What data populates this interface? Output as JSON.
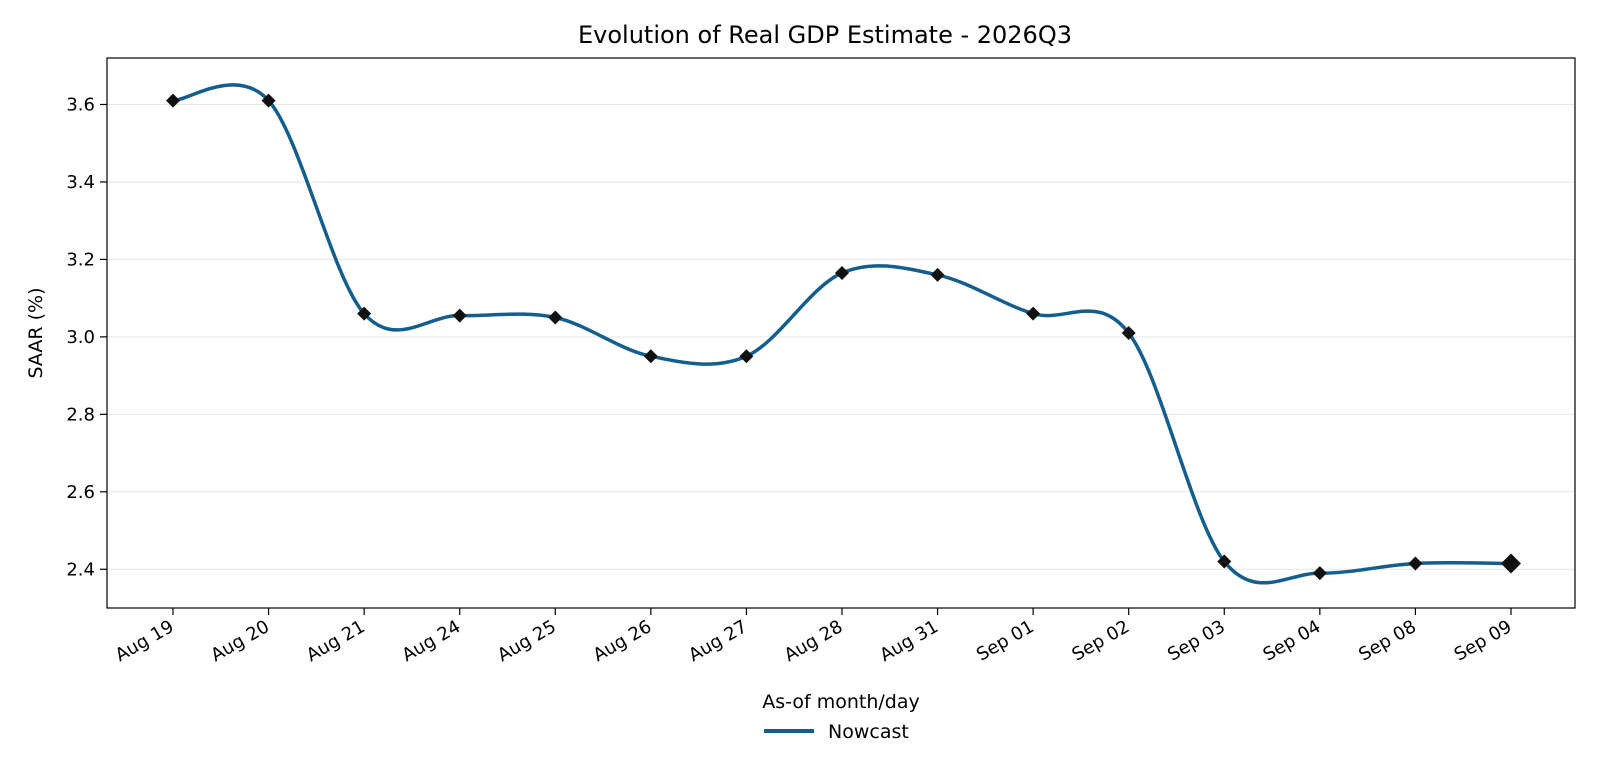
{
  "chart_data": {
    "type": "line",
    "title": "Evolution of Real GDP Estimate - 2026Q3",
    "xlabel": "As-of month/day",
    "ylabel": "SAAR (%)",
    "categories": [
      "Aug 19",
      "Aug 20",
      "Aug 21",
      "Aug 24",
      "Aug 25",
      "Aug 26",
      "Aug 27",
      "Aug 28",
      "Aug 31",
      "Sep 01",
      "Sep 02",
      "Sep 03",
      "Sep 04",
      "Sep 08",
      "Sep 09"
    ],
    "series": [
      {
        "name": "Nowcast",
        "color": "#135e8c",
        "values": [
          3.61,
          3.61,
          3.06,
          3.055,
          3.05,
          2.95,
          2.95,
          3.165,
          3.16,
          3.06,
          3.01,
          2.42,
          2.39,
          2.415,
          2.415
        ]
      }
    ],
    "ylim": [
      2.3,
      3.72
    ],
    "yticks": [
      2.4,
      2.6,
      2.8,
      3.0,
      3.2,
      3.4,
      3.6
    ],
    "ytick_labels": [
      "2.4",
      "2.6",
      "2.8",
      "3.0",
      "3.2",
      "3.4",
      "3.6"
    ],
    "grid": "horizontal",
    "legend_position": "bottom-center",
    "marker": "diamond",
    "marker_color": "#111111"
  }
}
